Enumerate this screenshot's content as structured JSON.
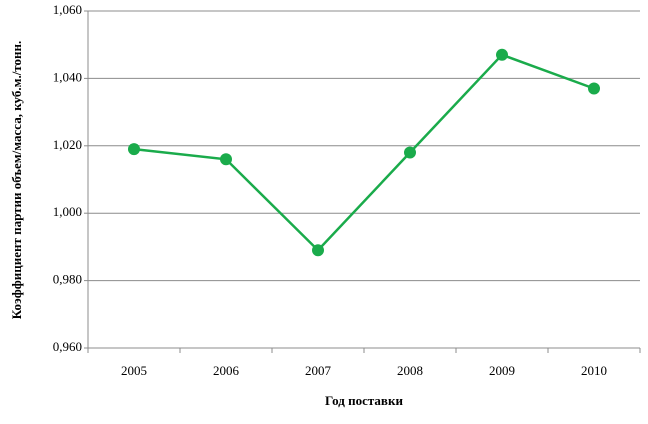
{
  "chart_data": {
    "type": "line",
    "x_label": "Год поставки",
    "y_label": "Коэффициент партии объем/масса, куб.м./тонн.",
    "categories": [
      "2005",
      "2006",
      "2007",
      "2008",
      "2009",
      "2010"
    ],
    "series": [
      {
        "name": "Коэффициент",
        "color": "#1aab4b",
        "values": [
          1.019,
          1.016,
          0.989,
          1.018,
          1.047,
          1.037
        ]
      }
    ],
    "ylim": [
      0.96,
      1.06
    ],
    "yticks": [
      {
        "value": 0.96,
        "label": "0,960"
      },
      {
        "value": 0.98,
        "label": "0,980"
      },
      {
        "value": 1.0,
        "label": "1,000"
      },
      {
        "value": 1.02,
        "label": "1,020"
      },
      {
        "value": 1.04,
        "label": "1,040"
      },
      {
        "value": 1.06,
        "label": "1,060"
      }
    ],
    "grid": true
  }
}
